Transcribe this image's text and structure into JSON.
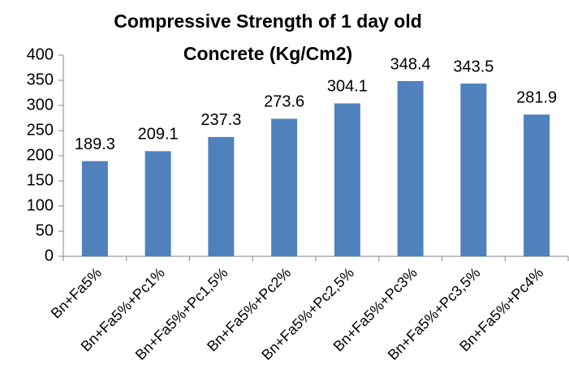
{
  "chart_data": {
    "type": "bar",
    "title": [
      "Compressive Strength of 1 day old",
      "Concrete (Kg/Cm2)"
    ],
    "categories": [
      "Bn+Fa5%",
      "Bn+Fa5%+Pc1%",
      "Bn+Fa5%+Pc1,5%",
      "Bn+Fa5%+Pc2%",
      "Bn+Fa5%+Pc2,5%",
      "Bn+Fa5%+Pc3%",
      "Bn+Fa5%+Pc3,5%",
      "Bn+Fa5%+Pc4%"
    ],
    "values": [
      189.3,
      209.1,
      237.3,
      273.6,
      304.1,
      348.4,
      343.5,
      281.9
    ],
    "color": "#4f81bd",
    "ylim": [
      0,
      400
    ],
    "yticks": [
      0,
      50,
      100,
      150,
      200,
      250,
      300,
      350,
      400
    ],
    "grid": false
  }
}
